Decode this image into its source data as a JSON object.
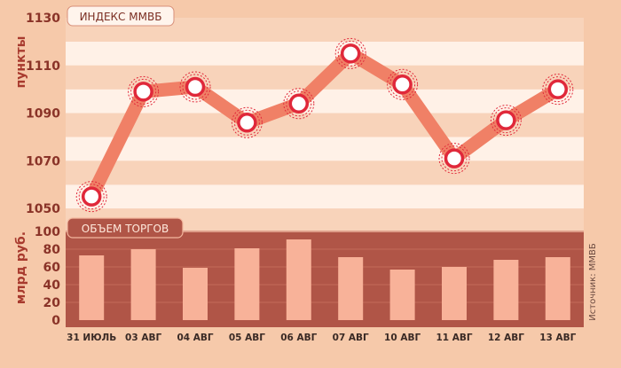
{
  "chart_data": [
    {
      "type": "line",
      "title": "ИНДЕКС ММВБ",
      "ylabel": "пункты",
      "ylim": [
        1040,
        1130
      ],
      "yticks": [
        1050,
        1070,
        1090,
        1110,
        1130
      ],
      "categories": [
        "31 ИЮЛЬ",
        "03 АВГ",
        "04 АВГ",
        "05 АВГ",
        "06 АВГ",
        "07 АВГ",
        "10 АВГ",
        "11 АВГ",
        "12 АВГ",
        "13 АВГ"
      ],
      "values": [
        1055,
        1099,
        1101,
        1086,
        1094,
        1115,
        1102,
        1071,
        1087,
        1100
      ],
      "grid": "alternating horizontal bands",
      "colors": {
        "line": "#f08066",
        "marker": "#e0283a",
        "band_light": "#fff1e7",
        "band_dark": "#f8d3ba"
      }
    },
    {
      "type": "bar",
      "title": "ОБЪЕМ ТОРГОВ",
      "ylabel": "млрд руб.",
      "ylim": [
        0,
        100
      ],
      "yticks": [
        0,
        20,
        40,
        60,
        80,
        100
      ],
      "categories": [
        "31 ИЮЛЬ",
        "03 АВГ",
        "04 АВГ",
        "05 АВГ",
        "06 АВГ",
        "07 АВГ",
        "10 АВГ",
        "11 АВГ",
        "12 АВГ",
        "13 АВГ"
      ],
      "values": [
        73,
        80,
        59,
        81,
        91,
        71,
        57,
        60,
        68,
        71
      ],
      "colors": {
        "bar": "#f8b299",
        "background": "#b05547"
      }
    }
  ],
  "source": "Источник: ММВБ"
}
